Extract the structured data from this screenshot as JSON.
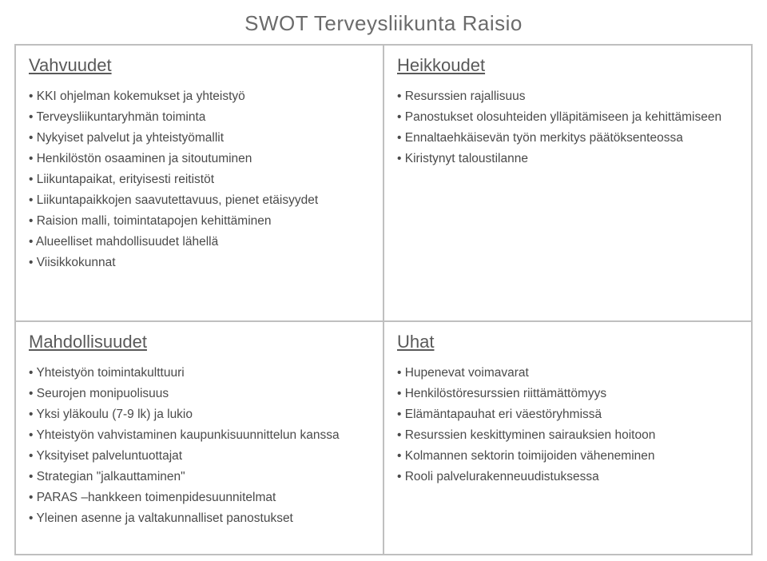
{
  "title": "SWOT Terveysliikunta Raisio",
  "quadrants": [
    {
      "name": "strengths",
      "heading": "Vahvuudet",
      "items": [
        "KKI ohjelman kokemukset ja yhteistyö",
        "Terveysliikuntaryhmän toiminta",
        "Nykyiset palvelut ja yhteistyömallit",
        "Henkilöstön osaaminen ja sitoutuminen",
        "Liikuntapaikat, erityisesti reitistöt",
        "Liikuntapaikkojen saavutettavuus, pienet etäisyydet",
        "Raision malli, toimintatapojen kehittäminen",
        "Alueelliset mahdollisuudet lähellä",
        "Viisikkokunnat"
      ]
    },
    {
      "name": "weaknesses",
      "heading": "Heikkoudet",
      "items": [
        "Resurssien rajallisuus",
        "Panostukset olosuhteiden ylläpitämiseen ja kehittämiseen",
        "Ennaltaehkäisevän työn merkitys päätöksenteossa",
        "Kiristynyt taloustilanne"
      ]
    },
    {
      "name": "opportunities",
      "heading": "Mahdollisuudet",
      "items": [
        "Yhteistyön toimintakulttuuri",
        "Seurojen monipuolisuus",
        "Yksi yläkoulu (7-9 lk) ja lukio",
        "Yhteistyön vahvistaminen kaupunkisuunnittelun kanssa",
        "Yksityiset palveluntuottajat",
        "Strategian \"jalkauttaminen\"",
        "PARAS –hankkeen toimenpidesuunnitelmat",
        "Yleinen asenne ja valtakunnalliset panostukset"
      ]
    },
    {
      "name": "threats",
      "heading": "Uhat",
      "items": [
        "Hupenevat voimavarat",
        "Henkilöstöresurssien riittämättömyys",
        "Elämäntapauhat eri väestöryhmissä",
        "Resurssien keskittyminen sairauksien hoitoon",
        "Kolmannen sektorin toimijoiden väheneminen",
        "Rooli palvelurakenneuudistuksessa"
      ]
    }
  ],
  "style": {
    "border_color": "#bfbfbf",
    "text_color": "#4c4c4c",
    "heading_color": "#595959",
    "title_color": "#6b6b6b",
    "background": "#ffffff",
    "title_fontsize": 26,
    "heading_fontsize": 22,
    "item_fontsize": 15.5
  }
}
